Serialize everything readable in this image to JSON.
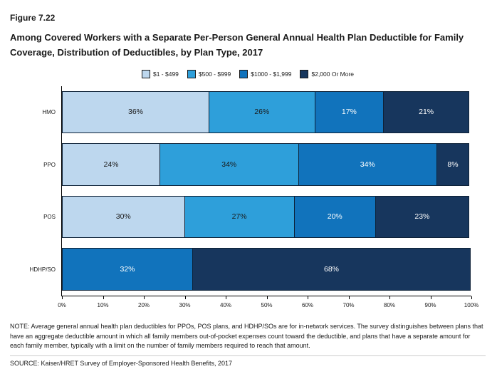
{
  "header": {
    "figure_label": "Figure 7.22",
    "title": "Among Covered Workers with a Separate Per-Person General Annual Health Plan Deductible for Family Coverage, Distribution of Deductibles, by Plan Type, 2017"
  },
  "chart_data": {
    "type": "bar",
    "orientation": "horizontal",
    "stacked": true,
    "value_suffix": "%",
    "categories": [
      "HMO",
      "PPO",
      "POS",
      "HDHP/SO"
    ],
    "series": [
      {
        "name": "$1 - $499",
        "color": "#BDD7EE",
        "label_color": "#1a1a1a",
        "values": [
          36,
          24,
          30,
          0
        ]
      },
      {
        "name": "$500 - $999",
        "color": "#2E9FDA",
        "label_color": "#1a1a1a",
        "values": [
          26,
          34,
          27,
          0
        ]
      },
      {
        "name": "$1000 - $1,999",
        "color": "#1173BC",
        "label_color": "#ffffff",
        "values": [
          17,
          34,
          20,
          32
        ]
      },
      {
        "name": "$2,000 Or More",
        "color": "#17365D",
        "label_color": "#ffffff",
        "values": [
          21,
          8,
          23,
          68
        ]
      }
    ],
    "x_ticks": [
      "0%",
      "10%",
      "20%",
      "30%",
      "40%",
      "50%",
      "60%",
      "70%",
      "80%",
      "90%",
      "100%"
    ],
    "xlim": [
      0,
      100
    ],
    "legend_position": "top",
    "grid": false
  },
  "footer": {
    "note": "NOTE: Average general annual health plan deductibles for PPOs, POS plans, and HDHP/SOs are for in-network services. The survey distinguishes between plans that have an aggregate deductible amount in which all family members out-of-pocket expenses count toward the deductible, and plans that have a separate amount for each family member, typically with a limit on the number of family members required to reach that amount.",
    "source": "SOURCE: Kaiser/HRET Survey of Employer-Sponsored Health Benefits, 2017"
  }
}
